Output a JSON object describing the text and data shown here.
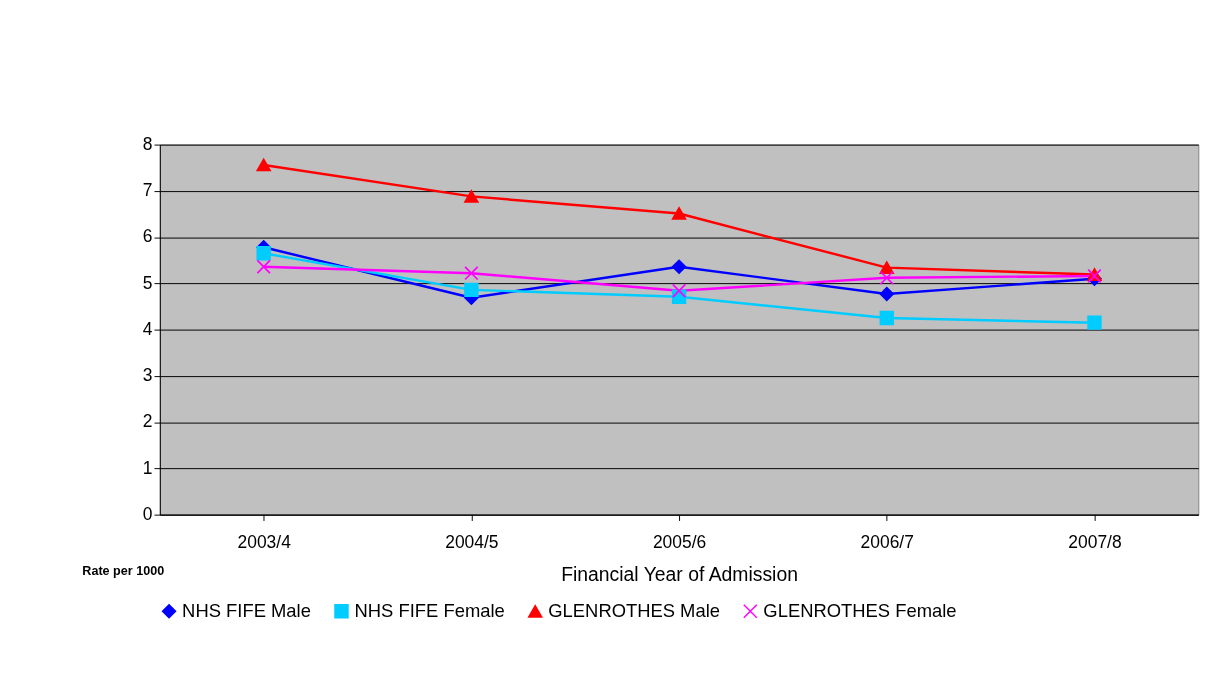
{
  "chart_data": {
    "type": "line",
    "xlabel": "Financial Year of Admission",
    "ylabel": "Rate per 1000",
    "categories": [
      "2003/4",
      "2004/5",
      "2005/6",
      "2006/7",
      "2007/8"
    ],
    "series": [
      {
        "name": "NHS FIFE Male",
        "color": "#0000ff",
        "marker": "diamond",
        "values": [
          5.78,
          4.69,
          5.36,
          4.77,
          5.1
        ]
      },
      {
        "name": "NHS FIFE Female",
        "color": "#00ccff",
        "marker": "square",
        "values": [
          5.65,
          4.86,
          4.71,
          4.25,
          4.15
        ]
      },
      {
        "name": "GLENROTHES Male",
        "color": "#ff0000",
        "marker": "triangle",
        "values": [
          7.56,
          6.88,
          6.51,
          5.34,
          5.19
        ]
      },
      {
        "name": "GLENROTHES Female",
        "color": "#ff00ff",
        "marker": "cross",
        "values": [
          5.36,
          5.22,
          4.84,
          5.12,
          5.16
        ]
      }
    ],
    "ylim": [
      0,
      8
    ],
    "yticks": [
      0,
      1,
      2,
      3,
      4,
      5,
      6,
      7,
      8
    ],
    "grid": "y",
    "legend": "bottom",
    "line_style": "solid"
  }
}
